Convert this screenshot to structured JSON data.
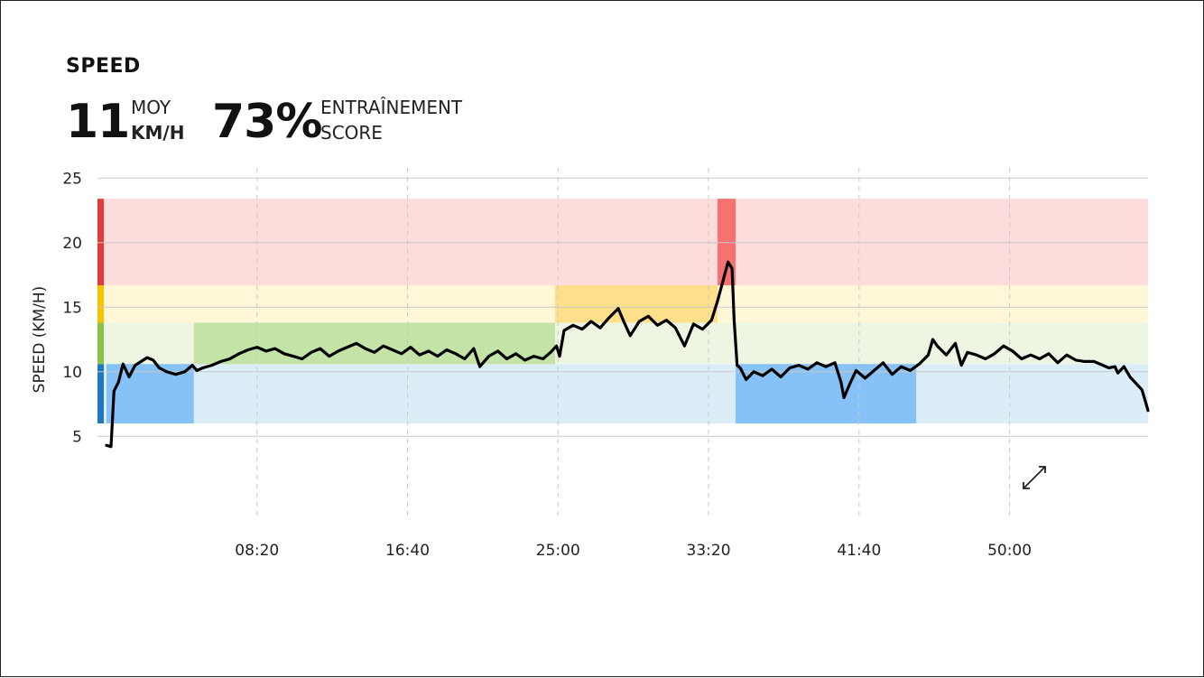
{
  "header": {
    "title": "SPEED",
    "avg_value": "11",
    "avg_label_top": "MOY",
    "avg_label_bottom": "KM/H",
    "score_value": "73%",
    "score_label_top": "ENTRAÎNEMENT",
    "score_label_bottom": "SCORE"
  },
  "chart_data": {
    "type": "line",
    "ylabel": "SPEED (KM/H)",
    "ylim": [
      4,
      25
    ],
    "xlim": [
      0,
      3460
    ],
    "y_ticks": [
      5,
      10,
      15,
      20,
      25
    ],
    "x_ticks": [
      {
        "value": 500,
        "label": "08:20"
      },
      {
        "value": 1000,
        "label": "16:40"
      },
      {
        "value": 1500,
        "label": "25:00"
      },
      {
        "value": 2000,
        "label": "33:20"
      },
      {
        "value": 2500,
        "label": "41:40"
      },
      {
        "value": 3000,
        "label": "50:00"
      }
    ],
    "zones": [
      {
        "name": "blue",
        "min": 6,
        "max": 10.6,
        "color": "#dbedf7",
        "highlight": "#86c2f7",
        "edge": "#1f78c1"
      },
      {
        "name": "green",
        "min": 10.6,
        "max": 13.8,
        "color": "#edf5e3",
        "highlight": "#c4e3a6",
        "edge": "#8bc34a"
      },
      {
        "name": "yellow",
        "min": 13.8,
        "max": 16.7,
        "color": "#fff7d8",
        "highlight": "#ffe08a",
        "edge": "#f5c400"
      },
      {
        "name": "red",
        "min": 16.7,
        "max": 23.4,
        "color": "#fddcdc",
        "highlight": "#f87171",
        "edge": "#e53935"
      }
    ],
    "zone_highlights": [
      {
        "zone": "blue",
        "x_start": 0,
        "x_end": 290
      },
      {
        "zone": "green",
        "x_start": 290,
        "x_end": 1490
      },
      {
        "zone": "yellow",
        "x_start": 1490,
        "x_end": 2030
      },
      {
        "zone": "red",
        "x_start": 2030,
        "x_end": 2090
      },
      {
        "zone": "blue",
        "x_start": 2090,
        "x_end": 2690
      }
    ],
    "series": [
      {
        "points": [
          [
            0,
            4.3
          ],
          [
            15,
            4.2
          ],
          [
            25,
            8.5
          ],
          [
            40,
            9.2
          ],
          [
            55,
            10.6
          ],
          [
            75,
            9.6
          ],
          [
            95,
            10.5
          ],
          [
            115,
            10.8
          ],
          [
            135,
            11.1
          ],
          [
            155,
            10.9
          ],
          [
            175,
            10.3
          ],
          [
            200,
            10.0
          ],
          [
            230,
            9.8
          ],
          [
            260,
            10.0
          ],
          [
            285,
            10.5
          ],
          [
            300,
            10.1
          ],
          [
            320,
            10.3
          ],
          [
            350,
            10.5
          ],
          [
            380,
            10.8
          ],
          [
            410,
            11.0
          ],
          [
            440,
            11.4
          ],
          [
            470,
            11.7
          ],
          [
            500,
            11.9
          ],
          [
            530,
            11.6
          ],
          [
            560,
            11.8
          ],
          [
            590,
            11.4
          ],
          [
            620,
            11.2
          ],
          [
            650,
            11.0
          ],
          [
            680,
            11.5
          ],
          [
            710,
            11.8
          ],
          [
            740,
            11.2
          ],
          [
            770,
            11.6
          ],
          [
            800,
            11.9
          ],
          [
            830,
            12.2
          ],
          [
            860,
            11.8
          ],
          [
            890,
            11.5
          ],
          [
            920,
            12.0
          ],
          [
            950,
            11.7
          ],
          [
            980,
            11.4
          ],
          [
            1010,
            11.9
          ],
          [
            1040,
            11.3
          ],
          [
            1070,
            11.6
          ],
          [
            1100,
            11.2
          ],
          [
            1130,
            11.7
          ],
          [
            1160,
            11.4
          ],
          [
            1190,
            11.0
          ],
          [
            1220,
            11.8
          ],
          [
            1240,
            10.4
          ],
          [
            1270,
            11.2
          ],
          [
            1300,
            11.6
          ],
          [
            1330,
            11.0
          ],
          [
            1360,
            11.4
          ],
          [
            1390,
            10.9
          ],
          [
            1420,
            11.2
          ],
          [
            1450,
            11.0
          ],
          [
            1475,
            11.5
          ],
          [
            1495,
            12.0
          ],
          [
            1505,
            11.2
          ],
          [
            1520,
            13.2
          ],
          [
            1550,
            13.6
          ],
          [
            1580,
            13.3
          ],
          [
            1610,
            13.9
          ],
          [
            1640,
            13.4
          ],
          [
            1670,
            14.2
          ],
          [
            1700,
            14.9
          ],
          [
            1720,
            13.8
          ],
          [
            1740,
            12.8
          ],
          [
            1770,
            13.9
          ],
          [
            1800,
            14.3
          ],
          [
            1830,
            13.6
          ],
          [
            1860,
            14.0
          ],
          [
            1890,
            13.4
          ],
          [
            1920,
            12.0
          ],
          [
            1950,
            13.7
          ],
          [
            1980,
            13.3
          ],
          [
            2010,
            14.0
          ],
          [
            2030,
            15.5
          ],
          [
            2050,
            17.2
          ],
          [
            2065,
            18.5
          ],
          [
            2078,
            18.0
          ],
          [
            2085,
            14.0
          ],
          [
            2095,
            10.5
          ],
          [
            2105,
            10.3
          ],
          [
            2125,
            9.4
          ],
          [
            2150,
            10.0
          ],
          [
            2180,
            9.7
          ],
          [
            2210,
            10.2
          ],
          [
            2240,
            9.6
          ],
          [
            2270,
            10.3
          ],
          [
            2300,
            10.5
          ],
          [
            2330,
            10.2
          ],
          [
            2360,
            10.7
          ],
          [
            2390,
            10.4
          ],
          [
            2420,
            10.7
          ],
          [
            2440,
            9.2
          ],
          [
            2450,
            8.0
          ],
          [
            2470,
            9.1
          ],
          [
            2490,
            10.1
          ],
          [
            2520,
            9.5
          ],
          [
            2550,
            10.1
          ],
          [
            2580,
            10.7
          ],
          [
            2610,
            9.8
          ],
          [
            2640,
            10.4
          ],
          [
            2670,
            10.1
          ],
          [
            2700,
            10.6
          ],
          [
            2730,
            11.3
          ],
          [
            2745,
            12.5
          ],
          [
            2760,
            12.0
          ],
          [
            2790,
            11.3
          ],
          [
            2820,
            12.2
          ],
          [
            2840,
            10.5
          ],
          [
            2860,
            11.5
          ],
          [
            2890,
            11.3
          ],
          [
            2920,
            11.0
          ],
          [
            2950,
            11.4
          ],
          [
            2980,
            12.0
          ],
          [
            3010,
            11.6
          ],
          [
            3040,
            11.0
          ],
          [
            3070,
            11.3
          ],
          [
            3100,
            11.0
          ],
          [
            3130,
            11.4
          ],
          [
            3160,
            10.7
          ],
          [
            3190,
            11.3
          ],
          [
            3220,
            10.9
          ],
          [
            3250,
            10.8
          ],
          [
            3280,
            10.8
          ],
          [
            3310,
            10.5
          ],
          [
            3330,
            10.3
          ],
          [
            3350,
            10.4
          ],
          [
            3360,
            9.9
          ],
          [
            3380,
            10.4
          ],
          [
            3400,
            9.6
          ],
          [
            3440,
            8.6
          ],
          [
            3460,
            7.0
          ]
        ]
      }
    ]
  }
}
